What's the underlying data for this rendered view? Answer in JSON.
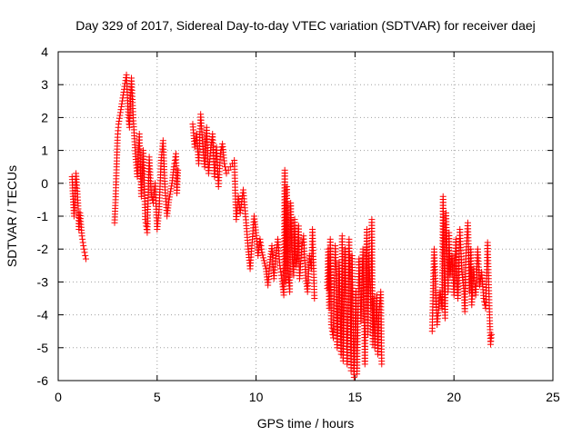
{
  "chart_data": {
    "type": "scatter",
    "title": "Day 329 of 2017, Sidereal Day-to-day VTEC variation (SDTVAR) for receiver daej",
    "xlabel": "GPS time / hours",
    "ylabel": "SDTVAR / TECUs",
    "xlim": [
      0,
      25
    ],
    "ylim": [
      -6,
      4
    ],
    "xticks": [
      "0",
      "5",
      "10",
      "15",
      "20",
      "25"
    ],
    "yticks": [
      "-6",
      "-5",
      "-4",
      "-3",
      "-2",
      "-1",
      "0",
      "1",
      "2",
      "3",
      "4"
    ],
    "grid": true,
    "marker": "plus",
    "marker_color": "#ff0000",
    "series": [
      {
        "name": "SDTVAR",
        "keypoints": [
          [
            0.7,
            0.2
          ],
          [
            0.75,
            -0.4
          ],
          [
            0.8,
            -1.0
          ],
          [
            0.85,
            -0.3
          ],
          [
            0.9,
            0.3
          ],
          [
            1.0,
            -0.6
          ],
          [
            1.05,
            -1.4
          ],
          [
            1.1,
            -0.9
          ],
          [
            1.2,
            -1.6
          ],
          [
            1.3,
            -2.0
          ],
          [
            1.4,
            -2.3
          ],
          [
            2.85,
            -1.2
          ],
          [
            2.9,
            -0.5
          ],
          [
            2.95,
            0.5
          ],
          [
            3.0,
            1.4
          ],
          [
            3.05,
            1.8
          ],
          [
            3.45,
            3.3
          ],
          [
            3.5,
            2.6
          ],
          [
            3.55,
            2.0
          ],
          [
            3.6,
            1.7
          ],
          [
            3.7,
            3.2
          ],
          [
            3.8,
            1.9
          ],
          [
            3.9,
            0.9
          ],
          [
            4.0,
            0.2
          ],
          [
            4.1,
            1.5
          ],
          [
            4.2,
            -0.4
          ],
          [
            4.3,
            1.0
          ],
          [
            4.4,
            -1.1
          ],
          [
            4.5,
            -1.5
          ],
          [
            4.6,
            0.8
          ],
          [
            4.7,
            -0.3
          ],
          [
            4.8,
            -0.6
          ],
          [
            4.9,
            0.0
          ],
          [
            5.0,
            -1.4
          ],
          [
            5.1,
            -0.8
          ],
          [
            5.2,
            0.7
          ],
          [
            5.3,
            1.3
          ],
          [
            5.4,
            -0.2
          ],
          [
            5.5,
            -1.0
          ],
          [
            5.6,
            -0.5
          ],
          [
            5.75,
            0.0
          ],
          [
            5.85,
            0.5
          ],
          [
            5.95,
            0.9
          ],
          [
            6.0,
            -0.3
          ],
          [
            6.05,
            0.4
          ],
          [
            6.8,
            1.8
          ],
          [
            6.9,
            1.1
          ],
          [
            7.0,
            1.5
          ],
          [
            7.1,
            0.6
          ],
          [
            7.2,
            2.1
          ],
          [
            7.3,
            1.2
          ],
          [
            7.4,
            0.5
          ],
          [
            7.5,
            1.7
          ],
          [
            7.6,
            0.3
          ],
          [
            7.7,
            1.0
          ],
          [
            7.8,
            1.5
          ],
          [
            7.9,
            0.2
          ],
          [
            8.0,
            1.1
          ],
          [
            8.1,
            -0.1
          ],
          [
            8.2,
            0.9
          ],
          [
            8.3,
            1.2
          ],
          [
            8.4,
            0.6
          ],
          [
            8.5,
            0.3
          ],
          [
            8.9,
            0.7
          ],
          [
            8.95,
            -0.3
          ],
          [
            9.0,
            -1.1
          ],
          [
            9.1,
            -0.4
          ],
          [
            9.2,
            -0.9
          ],
          [
            9.35,
            -0.2
          ],
          [
            9.5,
            -1.2
          ],
          [
            9.6,
            -2.0
          ],
          [
            9.7,
            -2.6
          ],
          [
            9.8,
            -1.8
          ],
          [
            9.9,
            -1.0
          ],
          [
            10.0,
            -1.5
          ],
          [
            10.1,
            -2.2
          ],
          [
            10.2,
            -1.7
          ],
          [
            10.3,
            -2.1
          ],
          [
            10.5,
            -2.6
          ],
          [
            10.6,
            -3.1
          ],
          [
            10.7,
            -2.4
          ],
          [
            10.8,
            -1.9
          ],
          [
            10.9,
            -2.9
          ],
          [
            11.0,
            -2.2
          ],
          [
            11.1,
            -1.7
          ],
          [
            11.2,
            -2.5
          ],
          [
            11.3,
            -2.9
          ],
          [
            11.4,
            -3.4
          ],
          [
            11.45,
            0.4
          ],
          [
            11.5,
            -3.0
          ],
          [
            11.55,
            -0.1
          ],
          [
            11.6,
            -2.6
          ],
          [
            11.7,
            -3.3
          ],
          [
            11.75,
            -0.6
          ],
          [
            11.8,
            -2.0
          ],
          [
            11.9,
            -2.8
          ],
          [
            11.95,
            -1.1
          ],
          [
            12.0,
            -2.5
          ],
          [
            12.1,
            -2.2
          ],
          [
            12.15,
            -1.3
          ],
          [
            12.2,
            -2.9
          ],
          [
            12.3,
            -2.0
          ],
          [
            12.4,
            -1.6
          ],
          [
            12.5,
            -2.8
          ],
          [
            12.6,
            -3.3
          ],
          [
            12.7,
            -2.2
          ],
          [
            12.8,
            -2.6
          ],
          [
            12.85,
            -1.4
          ],
          [
            12.95,
            -3.5
          ],
          [
            13.6,
            -3.2
          ],
          [
            13.65,
            -2.0
          ],
          [
            13.7,
            -3.8
          ],
          [
            13.75,
            -1.7
          ],
          [
            13.8,
            -4.3
          ],
          [
            13.9,
            -4.7
          ],
          [
            14.0,
            -1.9
          ],
          [
            14.05,
            -2.8
          ],
          [
            14.1,
            -5.0
          ],
          [
            14.2,
            -2.4
          ],
          [
            14.3,
            -5.2
          ],
          [
            14.35,
            -1.6
          ],
          [
            14.4,
            -5.4
          ],
          [
            14.5,
            -2.0
          ],
          [
            14.6,
            -5.5
          ],
          [
            14.7,
            -1.7
          ],
          [
            14.75,
            -3.0
          ],
          [
            14.8,
            -5.7
          ],
          [
            14.85,
            -2.2
          ],
          [
            14.95,
            -5.9
          ],
          [
            15.05,
            -3.3
          ],
          [
            15.1,
            -5.8
          ],
          [
            15.2,
            -2.3
          ],
          [
            15.3,
            -4.2
          ],
          [
            15.4,
            -2.0
          ],
          [
            15.5,
            -5.5
          ],
          [
            15.55,
            -3.6
          ],
          [
            15.6,
            -1.4
          ],
          [
            15.65,
            -4.6
          ],
          [
            15.7,
            -2.2
          ],
          [
            15.8,
            -3.8
          ],
          [
            15.85,
            -1.1
          ],
          [
            15.9,
            -4.9
          ],
          [
            15.95,
            -3.5
          ],
          [
            16.0,
            -5.0
          ],
          [
            16.1,
            -3.4
          ],
          [
            16.15,
            -5.2
          ],
          [
            16.2,
            -4.0
          ],
          [
            16.3,
            -3.3
          ],
          [
            16.35,
            -5.5
          ],
          [
            18.9,
            -4.5
          ],
          [
            18.95,
            -3.2
          ],
          [
            19.0,
            -2.0
          ],
          [
            19.1,
            -3.6
          ],
          [
            19.15,
            -4.3
          ],
          [
            19.3,
            -3.3
          ],
          [
            19.4,
            -3.8
          ],
          [
            19.45,
            -0.4
          ],
          [
            19.5,
            -2.5
          ],
          [
            19.55,
            -4.1
          ],
          [
            19.6,
            -0.9
          ],
          [
            19.7,
            -3.3
          ],
          [
            19.75,
            -1.5
          ],
          [
            19.8,
            -2.8
          ],
          [
            19.9,
            -2.2
          ],
          [
            20.0,
            -3.4
          ],
          [
            20.1,
            -1.7
          ],
          [
            20.15,
            -2.9
          ],
          [
            20.2,
            -3.5
          ],
          [
            20.3,
            -1.4
          ],
          [
            20.4,
            -2.7
          ],
          [
            20.5,
            -3.2
          ],
          [
            20.55,
            -3.9
          ],
          [
            20.6,
            -2.3
          ],
          [
            20.7,
            -1.2
          ],
          [
            20.8,
            -3.3
          ],
          [
            20.85,
            -2.0
          ],
          [
            20.9,
            -3.7
          ],
          [
            21.0,
            -2.6
          ],
          [
            21.1,
            -3.4
          ],
          [
            21.2,
            -2.0
          ],
          [
            21.3,
            -3.1
          ],
          [
            21.4,
            -2.7
          ],
          [
            21.5,
            -3.5
          ],
          [
            21.6,
            -3.8
          ],
          [
            21.65,
            -2.9
          ],
          [
            21.7,
            -1.8
          ],
          [
            21.8,
            -4.0
          ],
          [
            21.85,
            -4.9
          ],
          [
            21.9,
            -4.6
          ]
        ]
      }
    ]
  }
}
